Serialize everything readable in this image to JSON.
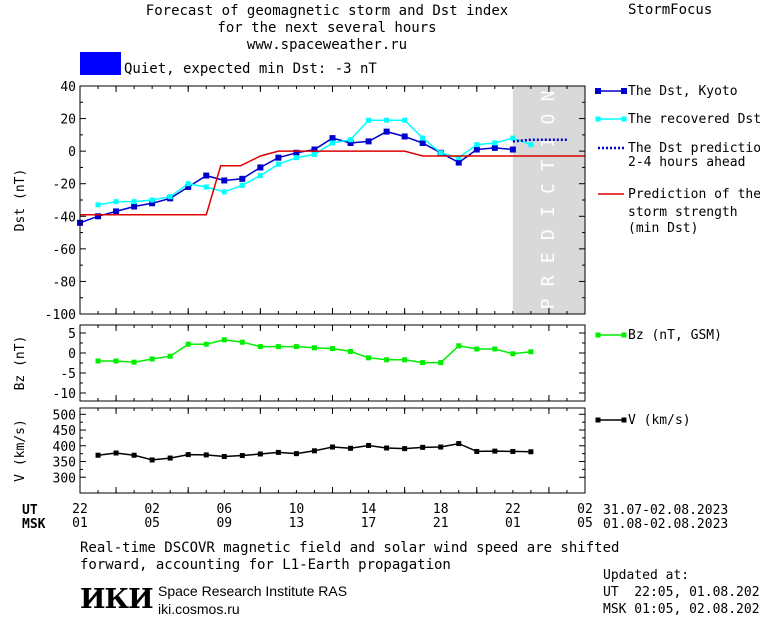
{
  "header": {
    "title_lines": [
      "Forecast of geomagnetic storm and Dst index",
      "for the next several hours",
      "www.spaceweather.ru"
    ],
    "brand": "StormFocus"
  },
  "status": {
    "label": "Quiet, expected min Dst: -3 nT",
    "color": "#0000ff"
  },
  "colors": {
    "dst": "#0000cc",
    "recovered": "#00ffff",
    "prediction_line": "#0000cc",
    "storm": "#dd0000",
    "bz": "#00ee00",
    "speed": "#000000",
    "prediction_band": "#d9d9d9"
  },
  "chart_data": [
    {
      "type": "line",
      "name": "dst",
      "ylabel": "Dst (nT)",
      "ylim": [
        -100,
        40
      ],
      "yticks": [
        40,
        20,
        0,
        -20,
        -40,
        -60,
        -80,
        -100
      ],
      "prediction_label": "PREDICTION",
      "prediction_range": [
        22,
        26
      ],
      "series": [
        {
          "name": "The Dst, Kyoto",
          "x": [
            -2,
            -1,
            0,
            1,
            2,
            3,
            4,
            5,
            6,
            7,
            8,
            9,
            10,
            11,
            12,
            13,
            14,
            15,
            16,
            17,
            18,
            19,
            20,
            21,
            22
          ],
          "y": [
            -44,
            -40,
            -37,
            -34,
            -32,
            -29,
            -22,
            -15,
            -18,
            -17,
            -10,
            -4,
            -1,
            1,
            8,
            5,
            6,
            12,
            9,
            5,
            -1,
            -7,
            1,
            2,
            1
          ]
        },
        {
          "name": "The recovered Dst",
          "x": [
            -1,
            0,
            1,
            2,
            3,
            4,
            5,
            6,
            7,
            8,
            9,
            10,
            11,
            12,
            13,
            14,
            15,
            16,
            17,
            18,
            19,
            20,
            21,
            22,
            23
          ],
          "y": [
            -33,
            -31,
            -31,
            -30,
            -28,
            -20,
            -22,
            -25,
            -21,
            -15,
            -8,
            -4,
            -2,
            5,
            7,
            19,
            19,
            19,
            8,
            -1,
            -4,
            4,
            5,
            8,
            4
          ]
        },
        {
          "name": "The Dst prediction 2-4 hours ahead",
          "x": [
            22,
            23,
            24,
            25
          ],
          "y": [
            6,
            7,
            7,
            7
          ]
        },
        {
          "name": "Prediction of the storm strength (min Dst)",
          "x": [
            -2,
            5,
            5.8,
            6.9,
            8,
            9,
            15,
            16,
            17,
            26
          ],
          "y": [
            -39,
            -39,
            -9,
            -9,
            -3,
            0,
            0,
            0,
            -3,
            -3
          ]
        }
      ]
    },
    {
      "type": "line",
      "name": "bz",
      "ylabel": "Bz (nT)",
      "ylim": [
        -12,
        7
      ],
      "yticks": [
        5,
        0,
        -5,
        -10
      ],
      "series": [
        {
          "name": "Bz (nT, GSM)",
          "x": [
            -1,
            0,
            1,
            2,
            3,
            4,
            5,
            6,
            7,
            8,
            9,
            10,
            11,
            12,
            13,
            14,
            15,
            16,
            17,
            18,
            19,
            20,
            21,
            22,
            23
          ],
          "y": [
            -2,
            -2,
            -2.3,
            -1.5,
            -0.8,
            2.2,
            2.2,
            3.3,
            2.7,
            1.6,
            1.6,
            1.6,
            1.3,
            1.1,
            0.4,
            -1.2,
            -1.7,
            -1.7,
            -2.4,
            -2.4,
            1.8,
            1,
            1,
            -0.2,
            0.3
          ]
        }
      ]
    },
    {
      "type": "line",
      "name": "speed",
      "ylabel": "V (km/s)",
      "ylim": [
        250,
        520
      ],
      "yticks": [
        500,
        450,
        400,
        350,
        300
      ],
      "series": [
        {
          "name": "V (km/s)",
          "x": [
            -1,
            0,
            1,
            2,
            3,
            4,
            5,
            6,
            7,
            8,
            9,
            10,
            11,
            12,
            13,
            14,
            15,
            16,
            17,
            18,
            19,
            20,
            21,
            22,
            23
          ],
          "y": [
            370,
            377,
            370,
            355,
            361,
            372,
            371,
            366,
            369,
            374,
            379,
            375,
            384,
            396,
            392,
            401,
            393,
            391,
            395,
            396,
            407,
            382,
            383,
            382,
            381
          ]
        }
      ]
    }
  ],
  "axis": {
    "x_range": [
      -2,
      26
    ],
    "ut_label": "UT",
    "msk_label": "MSK",
    "ut_ticks": [
      "22",
      "02",
      "06",
      "10",
      "14",
      "18",
      "22",
      "02"
    ],
    "msk_ticks": [
      "01",
      "05",
      "09",
      "13",
      "17",
      "21",
      "01",
      "05"
    ],
    "ut_dates": "31.07-02.08.2023",
    "msk_dates": "01.08-02.08.2023"
  },
  "legends": {
    "dst": [
      "The Dst, Kyoto",
      "The recovered Dst",
      "The Dst prediction",
      "2-4 hours ahead",
      "Prediction of the",
      "storm strength",
      "(min Dst)"
    ],
    "bz": "Bz (nT, GSM)",
    "speed": "V (km/s)"
  },
  "footer": {
    "note_lines": [
      "Real-time DSCOVR magnetic field and solar wind speed are shifted",
      "forward, accounting for L1-Earth propagation"
    ],
    "logo_text": "ИКИ",
    "institute": "Space Research Institute RAS",
    "site": "iki.cosmos.ru",
    "updated_label": "Updated at:",
    "updated_ut": "UT  22:05, 01.08.2023",
    "updated_msk": "MSK 01:05, 02.08.2023"
  }
}
